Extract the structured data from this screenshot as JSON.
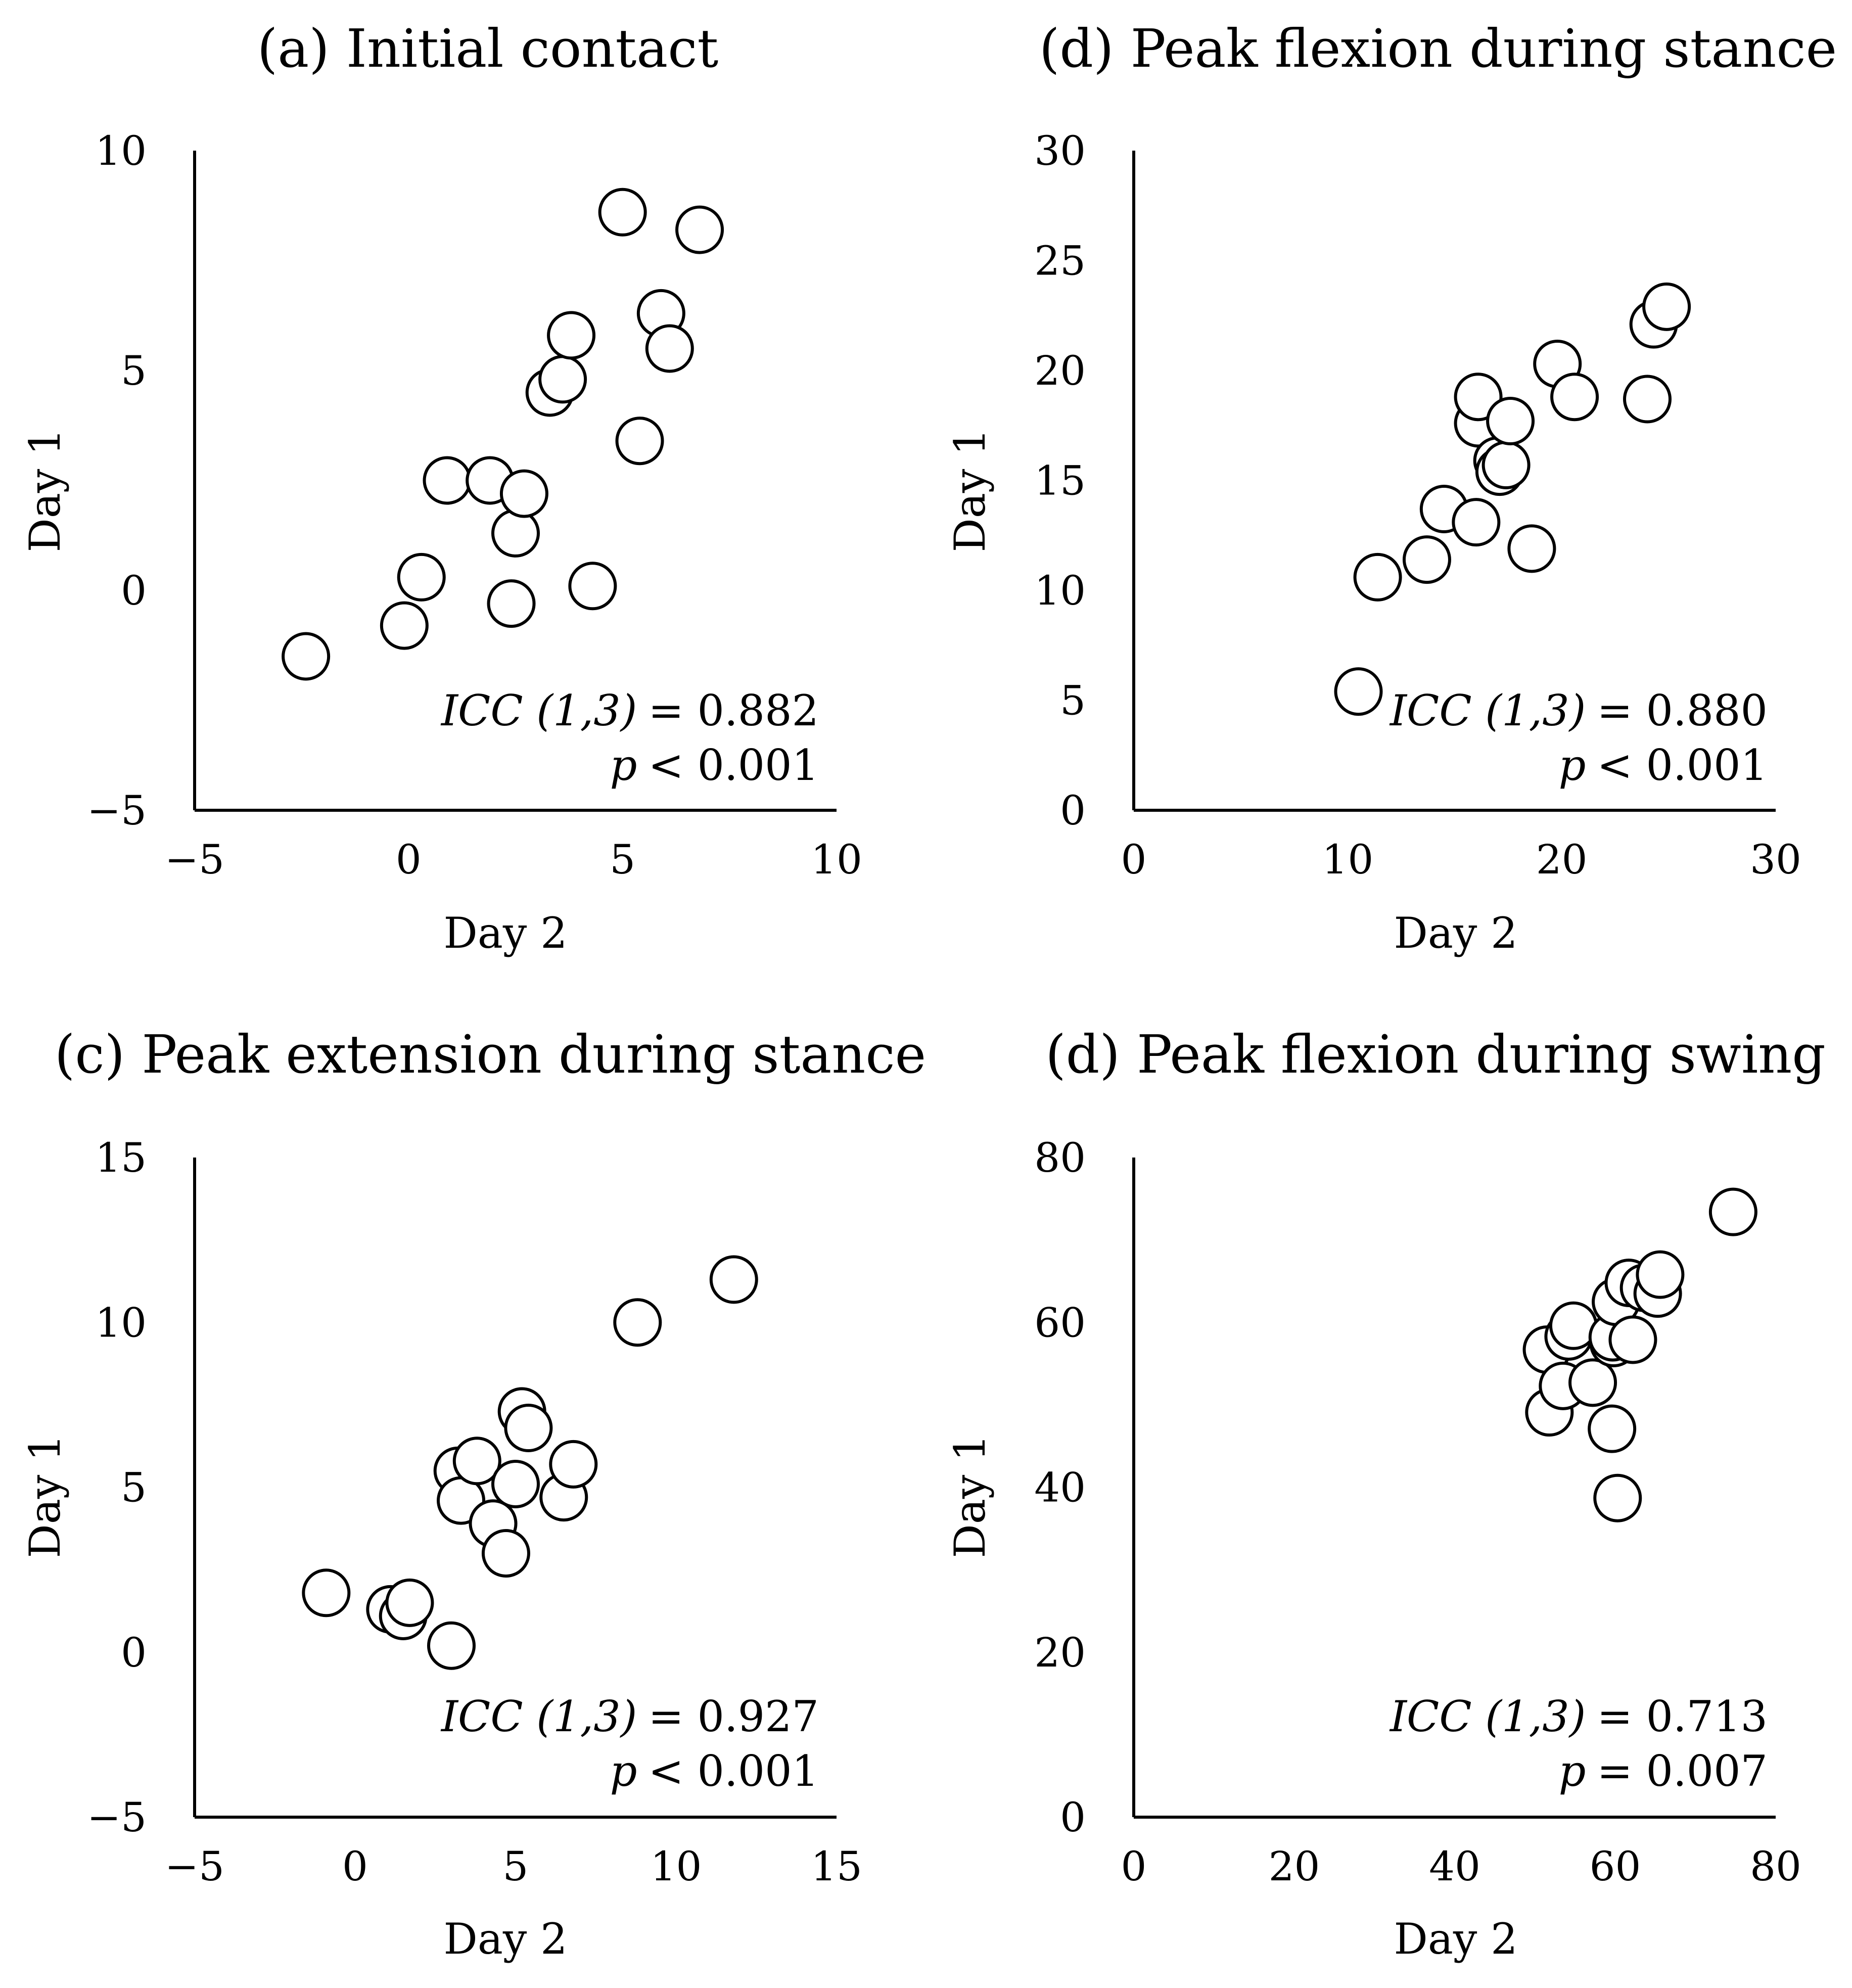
{
  "chart_data": [
    {
      "type": "scatter",
      "title": "(a) Initial contact",
      "xlabel": "Day 2",
      "ylabel": "Day 1",
      "xlim": [
        -5,
        10
      ],
      "ylim": [
        -5,
        10
      ],
      "xticks": [
        "−5",
        "0",
        "5",
        "10"
      ],
      "yticks": [
        "−5",
        "0",
        "5",
        "10"
      ],
      "grid": false,
      "points": [
        {
          "x": -2.4,
          "y": -1.5
        },
        {
          "x": -0.1,
          "y": -0.8
        },
        {
          "x": 0.3,
          "y": 0.3
        },
        {
          "x": 0.9,
          "y": 2.5
        },
        {
          "x": 1.9,
          "y": 2.5
        },
        {
          "x": 2.4,
          "y": -0.3
        },
        {
          "x": 2.5,
          "y": 1.3
        },
        {
          "x": 2.7,
          "y": 2.2
        },
        {
          "x": 3.3,
          "y": 4.5
        },
        {
          "x": 3.6,
          "y": 4.8
        },
        {
          "x": 3.8,
          "y": 5.8
        },
        {
          "x": 4.3,
          "y": 0.1
        },
        {
          "x": 5.0,
          "y": 8.6
        },
        {
          "x": 5.4,
          "y": 3.4
        },
        {
          "x": 5.9,
          "y": 6.3
        },
        {
          "x": 6.1,
          "y": 5.5
        },
        {
          "x": 6.8,
          "y": 8.2
        }
      ],
      "annotation": {
        "icc_label": "ICC (1,3)",
        "icc_value": "= 0.882",
        "p_label": "p",
        "p_value": "< 0.001"
      }
    },
    {
      "type": "scatter",
      "title": "(d) Peak flexion during stance",
      "xlabel": "Day 2",
      "ylabel": "Day 1",
      "xlim": [
        0,
        30
      ],
      "ylim": [
        0,
        30
      ],
      "xticks": [
        "0",
        "10",
        "20",
        "30"
      ],
      "yticks": [
        "0",
        "5",
        "10",
        "15",
        "20",
        "25",
        "30"
      ],
      "grid": false,
      "points": [
        {
          "x": 10.5,
          "y": 5.4
        },
        {
          "x": 11.4,
          "y": 10.6
        },
        {
          "x": 13.7,
          "y": 11.4
        },
        {
          "x": 14.5,
          "y": 13.7
        },
        {
          "x": 16.0,
          "y": 13.1
        },
        {
          "x": 16.1,
          "y": 17.6
        },
        {
          "x": 16.1,
          "y": 18.8
        },
        {
          "x": 17.0,
          "y": 15.9
        },
        {
          "x": 17.1,
          "y": 15.4
        },
        {
          "x": 17.4,
          "y": 15.7
        },
        {
          "x": 17.6,
          "y": 17.7
        },
        {
          "x": 18.6,
          "y": 11.9
        },
        {
          "x": 19.8,
          "y": 20.3
        },
        {
          "x": 20.6,
          "y": 18.8
        },
        {
          "x": 24.0,
          "y": 18.7
        },
        {
          "x": 24.3,
          "y": 22.1
        },
        {
          "x": 24.9,
          "y": 22.9
        }
      ],
      "annotation": {
        "icc_label": "ICC (1,3)",
        "icc_value": "= 0.880",
        "p_label": "p",
        "p_value": "< 0.001"
      }
    },
    {
      "type": "scatter",
      "title": "(c) Peak extension during stance",
      "xlabel": "Day 2",
      "ylabel": "Day 1",
      "xlim": [
        -5,
        15
      ],
      "ylim": [
        -5,
        15
      ],
      "xticks": [
        "−5",
        "0",
        "5",
        "10",
        "15"
      ],
      "yticks": [
        "−5",
        "0",
        "5",
        "10",
        "15"
      ],
      "grid": false,
      "points": [
        {
          "x": -0.9,
          "y": 1.8
        },
        {
          "x": 1.1,
          "y": 1.3
        },
        {
          "x": 1.5,
          "y": 1.1
        },
        {
          "x": 1.7,
          "y": 1.5
        },
        {
          "x": 3.0,
          "y": 0.2
        },
        {
          "x": 3.2,
          "y": 5.5
        },
        {
          "x": 3.3,
          "y": 4.6
        },
        {
          "x": 3.8,
          "y": 5.8
        },
        {
          "x": 4.3,
          "y": 3.9
        },
        {
          "x": 4.7,
          "y": 3.0
        },
        {
          "x": 5.0,
          "y": 5.1
        },
        {
          "x": 5.2,
          "y": 7.3
        },
        {
          "x": 5.4,
          "y": 6.8
        },
        {
          "x": 6.5,
          "y": 4.7
        },
        {
          "x": 6.8,
          "y": 5.7
        },
        {
          "x": 8.8,
          "y": 10.0
        },
        {
          "x": 11.8,
          "y": 11.3
        }
      ],
      "annotation": {
        "icc_label": "ICC (1,3)",
        "icc_value": "= 0.927",
        "p_label": "p",
        "p_value": "< 0.001"
      }
    },
    {
      "type": "scatter",
      "title": "(d) Peak flexion during swing",
      "xlabel": "Day 2",
      "ylabel": "Day 1",
      "xlim": [
        0,
        80
      ],
      "ylim": [
        0,
        80
      ],
      "xticks": [
        "0",
        "20",
        "40",
        "60",
        "80"
      ],
      "yticks": [
        "0",
        "20",
        "40",
        "60",
        "80"
      ],
      "grid": false,
      "points": [
        {
          "x": 51.5,
          "y": 56.7
        },
        {
          "x": 51.8,
          "y": 49.1
        },
        {
          "x": 53.5,
          "y": 52.3
        },
        {
          "x": 54.2,
          "y": 58.3
        },
        {
          "x": 54.8,
          "y": 59.6
        },
        {
          "x": 57.2,
          "y": 52.7
        },
        {
          "x": 59.6,
          "y": 47.1
        },
        {
          "x": 59.8,
          "y": 57.5
        },
        {
          "x": 59.7,
          "y": 58.2
        },
        {
          "x": 60.1,
          "y": 62.5
        },
        {
          "x": 60.3,
          "y": 38.7
        },
        {
          "x": 61.7,
          "y": 64.8
        },
        {
          "x": 62.2,
          "y": 57.9
        },
        {
          "x": 63.6,
          "y": 64.2
        },
        {
          "x": 65.3,
          "y": 63.5
        },
        {
          "x": 65.6,
          "y": 65.8
        },
        {
          "x": 74.7,
          "y": 73.4
        }
      ],
      "annotation": {
        "icc_label": "ICC (1,3)",
        "icc_value": "= 0.713",
        "p_label": "p",
        "p_value": "= 0.007"
      }
    }
  ]
}
